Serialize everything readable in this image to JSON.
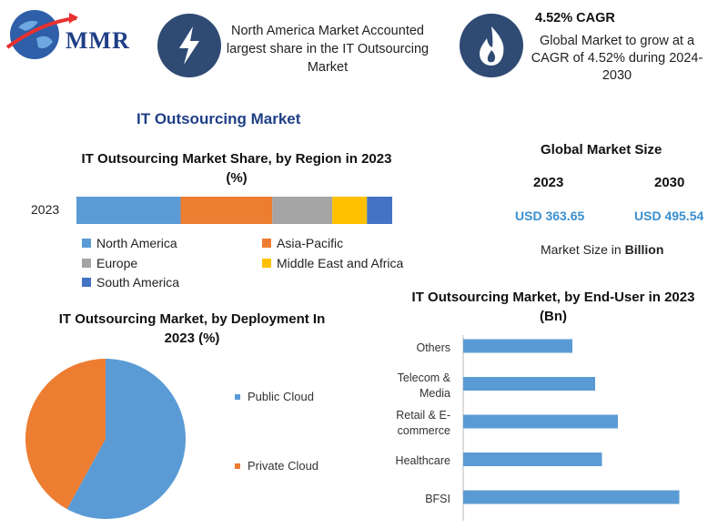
{
  "logo": {
    "text": "MMR"
  },
  "highlights": [
    {
      "icon": "lightning-icon",
      "title": "",
      "text": "North America Market Accounted largest share in the IT Outsourcing Market"
    },
    {
      "icon": "flame-icon",
      "title": "4.52% CAGR",
      "text": "Global Market to grow at a CAGR of 4.52% during 2024-2030"
    }
  ],
  "main_title": "IT Outsourcing Market",
  "market_size": {
    "heading": "Global Market Size",
    "years": [
      "2023",
      "2030"
    ],
    "values": [
      "USD 363.65",
      "USD 495.54"
    ],
    "note_prefix": "Market Size in ",
    "note_unit": "Billion"
  },
  "colors": {
    "north_america": "#5b9bd5",
    "asia_pacific": "#ed7d31",
    "europe": "#a5a5a5",
    "middle_east_africa": "#ffc000",
    "south_america": "#4472c4",
    "bar": "#5b9bd5"
  },
  "chart_data": [
    {
      "type": "bar",
      "orientation": "horizontal-stacked",
      "title": "IT Outsourcing Market Share, by Region in 2023 (%)",
      "categories": [
        "2023"
      ],
      "series": [
        {
          "name": "North America",
          "values": [
            33
          ],
          "color": "#5b9bd5"
        },
        {
          "name": "Asia-Pacific",
          "values": [
            29
          ],
          "color": "#ed7d31"
        },
        {
          "name": "Europe",
          "values": [
            19
          ],
          "color": "#a5a5a5"
        },
        {
          "name": "Middle East and Africa",
          "values": [
            11
          ],
          "color": "#ffc000"
        },
        {
          "name": "South America",
          "values": [
            8
          ],
          "color": "#4472c4"
        }
      ],
      "legend_position": "bottom"
    },
    {
      "type": "pie",
      "title": "IT Outsourcing Market, by Deployment In 2023 (%)",
      "labels": [
        "Public Cloud",
        "Private Cloud"
      ],
      "values": [
        58,
        42
      ],
      "colors": [
        "#5b9bd5",
        "#ed7d31"
      ],
      "legend_position": "right"
    },
    {
      "type": "bar",
      "orientation": "horizontal",
      "title": "IT Outsourcing Market, by End-User in 2023 (Bn)",
      "categories": [
        "Others",
        "Telecom & Media",
        "Retail & E-commerce",
        "Healthcare",
        "BFSI"
      ],
      "category_lines": [
        [
          "Others"
        ],
        [
          "Telecom &",
          "Media"
        ],
        [
          "Retail & E-",
          "commerce"
        ],
        [
          "Healthcare"
        ],
        [
          "BFSI"
        ]
      ],
      "values": [
        48,
        58,
        68,
        61,
        95
      ],
      "xlim": [
        0,
        100
      ],
      "color": "#5b9bd5"
    }
  ]
}
